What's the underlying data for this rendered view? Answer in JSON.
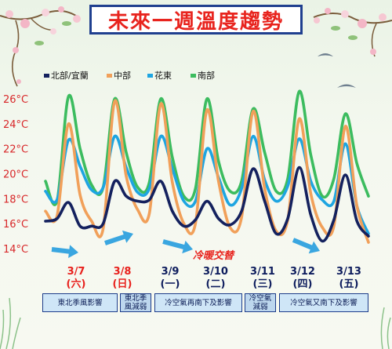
{
  "title": "未來一週溫度趨勢",
  "colors": {
    "north": "#14215e",
    "central": "#f1a05a",
    "east": "#1ea5e1",
    "south": "#3cbc5f",
    "axis_text": "#d8282a",
    "arrow": "#3aa6e0"
  },
  "annotation": "冷暖交替",
  "chart_data": {
    "type": "line",
    "x": [
      "3/7 00",
      "3/7 06",
      "3/7 12",
      "3/7 18",
      "3/8 00",
      "3/8 06",
      "3/8 12",
      "3/8 18",
      "3/9 00",
      "3/9 06",
      "3/9 12",
      "3/9 18",
      "3/10 00",
      "3/10 06",
      "3/10 12",
      "3/10 18",
      "3/11 00",
      "3/11 06",
      "3/11 12",
      "3/11 18",
      "3/12 00",
      "3/12 06",
      "3/12 12",
      "3/12 18",
      "3/13 00",
      "3/13 06",
      "3/13 12",
      "3/13 18",
      "3/14 00"
    ],
    "ylim": [
      14,
      26.8
    ],
    "yticks": [
      "14°C",
      "16°C",
      "18°C",
      "20°C",
      "22°C",
      "24°C",
      "26°C"
    ],
    "legend_position": "top",
    "series": [
      {
        "name": "北部/宜蘭",
        "key": "north",
        "values": [
          16.2,
          16.4,
          17.7,
          15.8,
          15.8,
          16.0,
          19.4,
          18.2,
          17.8,
          17.9,
          19.4,
          17.0,
          15.8,
          16.3,
          17.8,
          16.4,
          15.9,
          17.0,
          20.4,
          17.8,
          15.2,
          16.4,
          20.5,
          16.7,
          14.6,
          16.3,
          19.9,
          16.2,
          15.0
        ]
      },
      {
        "name": "中部",
        "key": "central",
        "values": [
          17.0,
          16.6,
          24.0,
          18.3,
          16.2,
          15.6,
          25.8,
          19.8,
          17.1,
          16.8,
          25.6,
          19.3,
          16.0,
          16.0,
          25.1,
          19.4,
          15.7,
          16.5,
          25.0,
          18.8,
          15.4,
          16.3,
          24.4,
          18.4,
          15.7,
          15.8,
          23.8,
          17.4,
          14.5
        ]
      },
      {
        "name": "花東",
        "key": "east",
        "values": [
          18.6,
          17.9,
          22.7,
          20.6,
          18.7,
          18.9,
          23.0,
          20.5,
          18.5,
          18.8,
          23.0,
          20.4,
          17.8,
          17.8,
          22.0,
          19.7,
          17.5,
          18.8,
          23.0,
          19.5,
          17.8,
          19.0,
          22.8,
          19.4,
          17.9,
          17.8,
          22.4,
          17.4,
          15.2
        ]
      },
      {
        "name": "南部",
        "key": "south",
        "values": [
          19.4,
          17.8,
          26.2,
          22.0,
          19.1,
          18.9,
          26.0,
          21.7,
          18.9,
          19.3,
          26.0,
          21.3,
          18.2,
          18.8,
          26.0,
          21.0,
          18.6,
          19.4,
          25.2,
          21.7,
          18.6,
          19.6,
          26.6,
          21.5,
          18.2,
          19.6,
          24.8,
          20.8,
          18.2
        ]
      }
    ]
  },
  "days": [
    {
      "date": "3/7",
      "weekday": "(六)",
      "color": "#e8201c"
    },
    {
      "date": "3/8",
      "weekday": "(日)",
      "color": "#e8201c"
    },
    {
      "date": "3/9",
      "weekday": "(一)",
      "color": "#0c1b5c"
    },
    {
      "date": "3/10",
      "weekday": "(二)",
      "color": "#0c1b5c"
    },
    {
      "date": "3/11",
      "weekday": "(三)",
      "color": "#0c1b5c"
    },
    {
      "date": "3/12",
      "weekday": "(四)",
      "color": "#0c1b5c"
    },
    {
      "date": "3/13",
      "weekday": "(五)",
      "color": "#0c1b5c"
    }
  ],
  "events": [
    {
      "lines": [
        "東北季風影響"
      ]
    },
    {
      "lines": [
        "東北季",
        "風減弱"
      ]
    },
    {
      "lines": [
        "冷空氣再南下及影響"
      ]
    },
    {
      "lines": [
        "冷空氣",
        "減弱"
      ]
    },
    {
      "lines": [
        "冷空氣又南下及影響"
      ]
    }
  ]
}
